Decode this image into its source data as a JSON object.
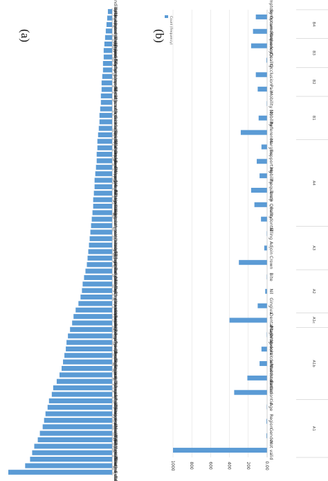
{
  "panels": {
    "a": "(a)",
    "b": "(b)"
  },
  "colors": {
    "bar": "#5b9bd5",
    "grid": "#d9d9d9",
    "axis": "#bfbfbf",
    "divider": "#bfbfbf"
  },
  "chart_data": [
    {
      "type": "bar",
      "orientation": "horizontal",
      "panel": "(a)",
      "categories": [
        "filling_distance",
        "tooth_related_defect",
        "pain_hypersensitive_swollen_pain",
        "tooth_defect",
        "restoration_classification",
        "root_canal_filling_material",
        "apical_root_filling",
        "treatment_material",
        "filling_material",
        "gingival_position_of_fracture",
        "caries",
        "mobility",
        "position_of_fracture",
        "gingival_swollen",
        "gingival_recession",
        "mesio_space_distance",
        "tooth_shape_conditions",
        "tooth_fine",
        "restoration",
        "restoration_of_adjacent_structure",
        "occlusal_gingival_space",
        "periodontal_bone_mechanism",
        "probing_depth",
        "tooth_position",
        "tooth_wear",
        "percussion",
        "furcation_involvement",
        "restoration_with_the_occlusal_pl",
        "residual_root",
        "porcelain_fracture",
        "dental_calculus",
        "exploration_probing",
        "gingival_fistula",
        "oral_hygiene",
        "overjet",
        "root_canal_filling",
        "overbite",
        "crown_root_ratio",
        "secondary_caries",
        "artificial_tooth_wear",
        "torus",
        "filling_margins",
        "furcation_marking",
        "mandibular_opening",
        "maxillary_jaw_relationship",
        "anteroposterior_jaw_relationship",
        "wedge_shaped_defect",
        "residual_crown",
        "difficulty_in_delivery",
        "occlusal_interference",
        "vertical_dimension",
        "food_impaction",
        "median_line",
        "cracked_tooth",
        "soft_tissue_lips",
        "crossbite",
        "occlusal_curve",
        "tooth_contact",
        "dilatation",
        "tip",
        "bone_undercut",
        "arrangement",
        "conditions_of_the_base_of_ridge",
        "gingival_symmetry",
        "cusp_fine",
        "child_root_fill",
        "space_tooth_gingival_margin",
        "fractured_clasp_arms",
        "seasons_line",
        "mandibular_appearance_size",
        "open_bite",
        "BMI"
      ],
      "values": [
        148,
        124,
        117,
        114,
        111,
        106,
        103,
        99,
        97,
        95,
        92,
        90,
        86,
        84,
        79,
        75,
        72,
        70,
        68,
        66,
        65,
        63,
        60,
        57,
        55,
        52,
        48,
        45,
        43,
        42,
        40,
        38,
        36,
        35,
        34,
        33,
        32,
        31,
        30,
        29,
        28,
        27,
        27,
        26,
        25,
        25,
        24,
        23,
        22,
        22,
        21,
        21,
        20,
        19,
        18,
        18,
        17,
        16,
        16,
        15,
        15,
        14,
        13,
        13,
        12,
        12,
        11,
        10,
        9,
        8,
        7,
        6
      ]
    },
    {
      "type": "bar",
      "orientation": "horizontal",
      "panel": "(b)",
      "legend": [
        "Count (Frequency)"
      ],
      "ticks": [
        "0.00",
        "200",
        "400",
        "600",
        "800",
        "1000"
      ],
      "xlim": [
        0,
        1100
      ],
      "groups": [
        {
          "label": "A1",
          "categories": [
            "Not valid",
            "Gender",
            "Region",
            "Age"
          ],
          "values": [
            1000,
            7,
            5,
            0
          ]
        },
        {
          "label": "A1b",
          "categories": [
            "Endodontic",
            "Prosthodontic",
            "Orthodontic with restoration",
            "Major alveolar dental",
            "Planning"
          ],
          "values": [
            350,
            210,
            80,
            60,
            0
          ]
        },
        {
          "label": "A1c",
          "categories": [
            "Dental"
          ],
          "values": [
            400
          ]
        },
        {
          "label": "A2",
          "categories": [
            "Gingiva",
            "Nil",
            "Bite"
          ],
          "values": [
            100,
            20,
            0
          ]
        },
        {
          "label": "A3",
          "categories": [
            "Crown",
            "Adjoin",
            "Filling"
          ],
          "values": [
            300,
            30,
            0
          ]
        },
        {
          "label": "A4",
          "categories": [
            "Periodontal",
            "Tooth Quality",
            "Frequency",
            "Mobility",
            "Supporting",
            "Margins"
          ],
          "values": [
            65,
            135,
            170,
            80,
            110,
            60
          ]
        },
        {
          "label": "B1",
          "categories": [
            "Reference",
            "Mobility",
            "Mobility (2)"
          ],
          "values": [
            280,
            90,
            0
          ]
        },
        {
          "label": "B2",
          "categories": [
            "Pain",
            "Occlusion"
          ],
          "values": [
            100,
            120
          ]
        },
        {
          "label": "B3",
          "categories": [
            "Quality",
            "Orthodontic"
          ],
          "values": [
            5,
            170
          ]
        },
        {
          "label": "B4",
          "categories": [
            "Symptom Frequency",
            "Symptom Occurrence"
          ],
          "values": [
            150,
            120
          ]
        }
      ]
    }
  ]
}
